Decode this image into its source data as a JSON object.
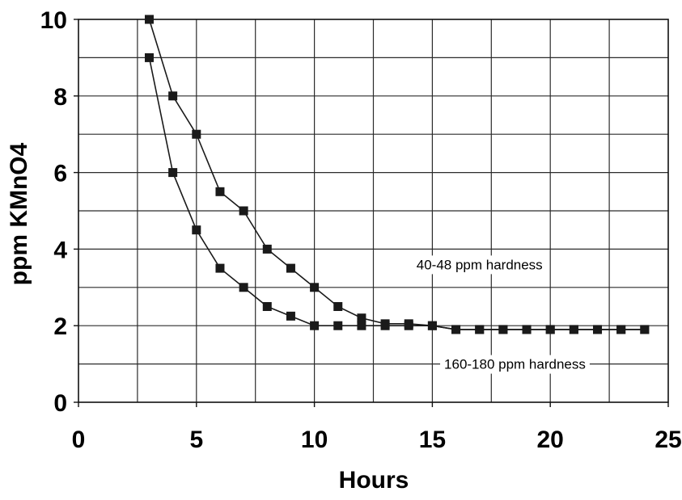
{
  "chart_data": {
    "type": "line",
    "title": "",
    "xlabel": "Hours",
    "ylabel": "ppm KMnO4",
    "xlim": [
      0,
      25
    ],
    "ylim": [
      0,
      10
    ],
    "xticks": [
      0,
      5,
      10,
      15,
      20,
      25
    ],
    "yticks": [
      0,
      2,
      4,
      6,
      8,
      10
    ],
    "grid": true,
    "grid_step_x": 2.5,
    "grid_step_y": 1,
    "x_tick_labels": [
      "0",
      "5",
      "10",
      "15",
      "20",
      "25"
    ],
    "y_tick_labels": [
      "0",
      "2",
      "4",
      "6",
      "8",
      "10"
    ],
    "marker": "square",
    "line_color": "#1a1a1a",
    "series": [
      {
        "name": "40-48 ppm hardness",
        "x": [
          3,
          4,
          5,
          6,
          7,
          8,
          9,
          10,
          11,
          12,
          13,
          14,
          15,
          16,
          17,
          18,
          19,
          20,
          21,
          22,
          23,
          24
        ],
        "y": [
          10,
          8,
          7,
          5.5,
          5,
          4,
          3.5,
          3,
          2.5,
          2.2,
          2.05,
          2.05,
          2,
          1.9,
          1.9,
          1.9,
          1.9,
          1.9,
          1.9,
          1.9,
          1.9,
          1.9
        ]
      },
      {
        "name": "160-180 ppm hardness",
        "x": [
          3,
          4,
          5,
          6,
          7,
          8,
          9,
          10,
          11,
          12,
          13,
          14,
          15,
          16,
          17,
          18,
          19,
          20,
          21,
          22,
          23,
          24
        ],
        "y": [
          9,
          6,
          4.5,
          3.5,
          3,
          2.5,
          2.25,
          2,
          2,
          2,
          2,
          2,
          2,
          1.9,
          1.9,
          1.9,
          1.9,
          1.9,
          1.9,
          1.9,
          1.9,
          1.9
        ]
      }
    ],
    "annotations": [
      {
        "text": "40-48 ppm hardness",
        "x": 17,
        "y": 3.6,
        "series_index": 0
      },
      {
        "text": "160-180 ppm hardness",
        "x": 18.5,
        "y": 1.0,
        "series_index": 1
      }
    ]
  }
}
